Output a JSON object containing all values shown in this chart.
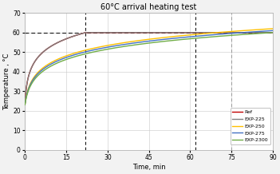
{
  "title": "60°C arrival heating test",
  "xlabel": "Time, min",
  "ylabel": "Temperature , °C",
  "xlim": [
    0,
    90
  ],
  "ylim": [
    0,
    70
  ],
  "xticks": [
    0,
    15,
    30,
    45,
    60,
    75,
    90
  ],
  "yticks": [
    0,
    10,
    20,
    30,
    40,
    50,
    60,
    70
  ],
  "target_temp": 60,
  "vlines": [
    22,
    62,
    75
  ],
  "vline_colors": [
    "black",
    "black",
    "#999999"
  ],
  "series": {
    "Ref": {
      "color": "#c00000",
      "t_end": 22,
      "T_start": 23,
      "T_end": 60,
      "k": 3.5
    },
    "EXP-225": {
      "color": "#808080",
      "t_end": 22,
      "T_start": 23,
      "T_end": 60,
      "k": 3.5
    },
    "EXP-250": {
      "color": "#ffc000",
      "t_end": 90,
      "T_start": 23,
      "T_end": 62,
      "k": 1.5
    },
    "EXP-275": {
      "color": "#4472c4",
      "t_end": 90,
      "T_start": 23,
      "T_end": 61,
      "k": 1.4
    },
    "EXP-2300": {
      "color": "#70ad47",
      "t_end": 90,
      "T_start": 23,
      "T_end": 60,
      "k": 1.2
    }
  },
  "background_color": "#ffffff",
  "plot_bg": "#ffffff",
  "outer_bg": "#f2f2f2",
  "figsize": [
    3.51,
    2.18
  ],
  "dpi": 100
}
